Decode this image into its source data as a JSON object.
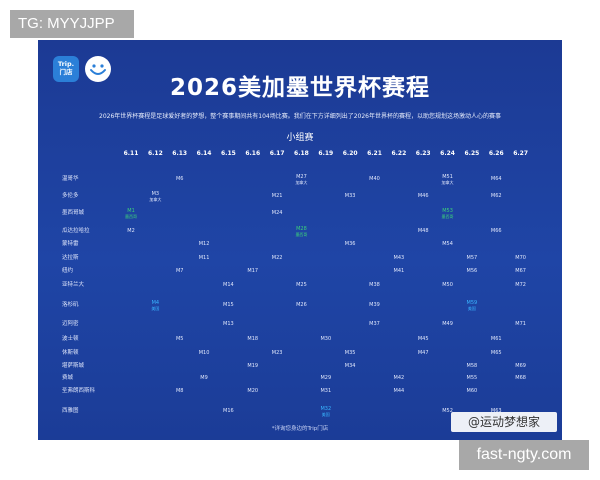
{
  "tag": "TG: MYYJJPP",
  "logo": {
    "line1": "Trip.",
    "line2": "门店"
  },
  "title": "2026美加墨世界杯赛程",
  "subtitle": "2026年世界杯赛程是足球爱好者的梦想，整个赛事期间共有104场比赛。我们在下方详细列出了2026年世界杯的赛程，以助您规划这场激动人心的赛事",
  "group_label": "小组赛",
  "dates": [
    "6.11",
    "6.12",
    "6.13",
    "6.14",
    "6.15",
    "6.16",
    "6.17",
    "6.18",
    "6.19",
    "6.20",
    "6.21",
    "6.22",
    "6.23",
    "6.24",
    "6.25",
    "6.26",
    "6.27"
  ],
  "cities": [
    "温哥华",
    "多伦多",
    "墨西哥城",
    "瓜达拉哈拉",
    "蒙特雷",
    "达拉斯",
    "纽约",
    "亚特兰大",
    "洛杉矶",
    "迈阿密",
    "波士顿",
    "休斯顿",
    "堪萨斯城",
    "费城",
    "圣弗朗西斯科",
    "西雅图"
  ],
  "matches": [
    {
      "city": 0,
      "date": 2,
      "label": "M6"
    },
    {
      "city": 0,
      "date": 7,
      "label": "M27",
      "note": "加拿大",
      "style": "red"
    },
    {
      "city": 0,
      "date": 10,
      "label": "M40"
    },
    {
      "city": 0,
      "date": 13,
      "label": "M51",
      "note": "加拿大",
      "style": "red"
    },
    {
      "city": 0,
      "date": 15,
      "label": "M64"
    },
    {
      "city": 1,
      "date": 1,
      "label": "M3",
      "note": "加拿大",
      "style": "red"
    },
    {
      "city": 1,
      "date": 6,
      "label": "M21"
    },
    {
      "city": 1,
      "date": 9,
      "label": "M33"
    },
    {
      "city": 1,
      "date": 12,
      "label": "M46"
    },
    {
      "city": 1,
      "date": 15,
      "label": "M62"
    },
    {
      "city": 2,
      "date": 0,
      "label": "M1",
      "note": "墨西哥",
      "style": "green"
    },
    {
      "city": 2,
      "date": 6,
      "label": "M24"
    },
    {
      "city": 2,
      "date": 13,
      "label": "M53",
      "note": "墨西哥",
      "style": "green"
    },
    {
      "city": 3,
      "date": 0,
      "label": "M2"
    },
    {
      "city": 3,
      "date": 7,
      "label": "M28",
      "note": "墨西哥",
      "style": "green"
    },
    {
      "city": 3,
      "date": 12,
      "label": "M48"
    },
    {
      "city": 3,
      "date": 15,
      "label": "M66"
    },
    {
      "city": 4,
      "date": 3,
      "label": "M12"
    },
    {
      "city": 4,
      "date": 9,
      "label": "M36"
    },
    {
      "city": 4,
      "date": 13,
      "label": "M54"
    },
    {
      "city": 5,
      "date": 3,
      "label": "M11"
    },
    {
      "city": 5,
      "date": 6,
      "label": "M22"
    },
    {
      "city": 5,
      "date": 11,
      "label": "M43"
    },
    {
      "city": 5,
      "date": 14,
      "label": "M57"
    },
    {
      "city": 5,
      "date": 16,
      "label": "M70"
    },
    {
      "city": 6,
      "date": 2,
      "label": "M7"
    },
    {
      "city": 6,
      "date": 5,
      "label": "M17"
    },
    {
      "city": 6,
      "date": 11,
      "label": "M41"
    },
    {
      "city": 6,
      "date": 14,
      "label": "M56"
    },
    {
      "city": 6,
      "date": 16,
      "label": "M67"
    },
    {
      "city": 7,
      "date": 4,
      "label": "M14"
    },
    {
      "city": 7,
      "date": 7,
      "label": "M25"
    },
    {
      "city": 7,
      "date": 10,
      "label": "M38"
    },
    {
      "city": 7,
      "date": 13,
      "label": "M50"
    },
    {
      "city": 7,
      "date": 16,
      "label": "M72"
    },
    {
      "city": 8,
      "date": 1,
      "label": "M4",
      "note": "美国",
      "style": "cyan"
    },
    {
      "city": 8,
      "date": 4,
      "label": "M15"
    },
    {
      "city": 8,
      "date": 7,
      "label": "M26"
    },
    {
      "city": 8,
      "date": 10,
      "label": "M39"
    },
    {
      "city": 8,
      "date": 14,
      "label": "M59",
      "note": "美国",
      "style": "cyan"
    },
    {
      "city": 9,
      "date": 4,
      "label": "M13"
    },
    {
      "city": 9,
      "date": 10,
      "label": "M37"
    },
    {
      "city": 9,
      "date": 13,
      "label": "M49"
    },
    {
      "city": 9,
      "date": 16,
      "label": "M71"
    },
    {
      "city": 10,
      "date": 2,
      "label": "M5"
    },
    {
      "city": 10,
      "date": 5,
      "label": "M18"
    },
    {
      "city": 10,
      "date": 8,
      "label": "M30"
    },
    {
      "city": 10,
      "date": 12,
      "label": "M45"
    },
    {
      "city": 10,
      "date": 15,
      "label": "M61"
    },
    {
      "city": 11,
      "date": 3,
      "label": "M10"
    },
    {
      "city": 11,
      "date": 6,
      "label": "M23"
    },
    {
      "city": 11,
      "date": 9,
      "label": "M35"
    },
    {
      "city": 11,
      "date": 12,
      "label": "M47"
    },
    {
      "city": 11,
      "date": 15,
      "label": "M65"
    },
    {
      "city": 12,
      "date": 5,
      "label": "M19"
    },
    {
      "city": 12,
      "date": 9,
      "label": "M34"
    },
    {
      "city": 12,
      "date": 14,
      "label": "M58"
    },
    {
      "city": 12,
      "date": 16,
      "label": "M69"
    },
    {
      "city": 13,
      "date": 3,
      "label": "M9"
    },
    {
      "city": 13,
      "date": 8,
      "label": "M29"
    },
    {
      "city": 13,
      "date": 11,
      "label": "M42"
    },
    {
      "city": 13,
      "date": 14,
      "label": "M55"
    },
    {
      "city": 13,
      "date": 16,
      "label": "M68"
    },
    {
      "city": 14,
      "date": 2,
      "label": "M8"
    },
    {
      "city": 14,
      "date": 5,
      "label": "M20"
    },
    {
      "city": 14,
      "date": 8,
      "label": "M31"
    },
    {
      "city": 14,
      "date": 11,
      "label": "M44"
    },
    {
      "city": 14,
      "date": 14,
      "label": "M60"
    },
    {
      "city": 15,
      "date": 4,
      "label": "M16"
    },
    {
      "city": 15,
      "date": 8,
      "label": "M32",
      "note": "美国",
      "style": "cyan"
    },
    {
      "city": 15,
      "date": 13,
      "label": "M52"
    },
    {
      "city": 15,
      "date": 15,
      "label": "M63"
    }
  ],
  "footnote": "*详询您身边的Trip门店",
  "watermark": "@运动梦想家",
  "site": "fast-ngty.com"
}
